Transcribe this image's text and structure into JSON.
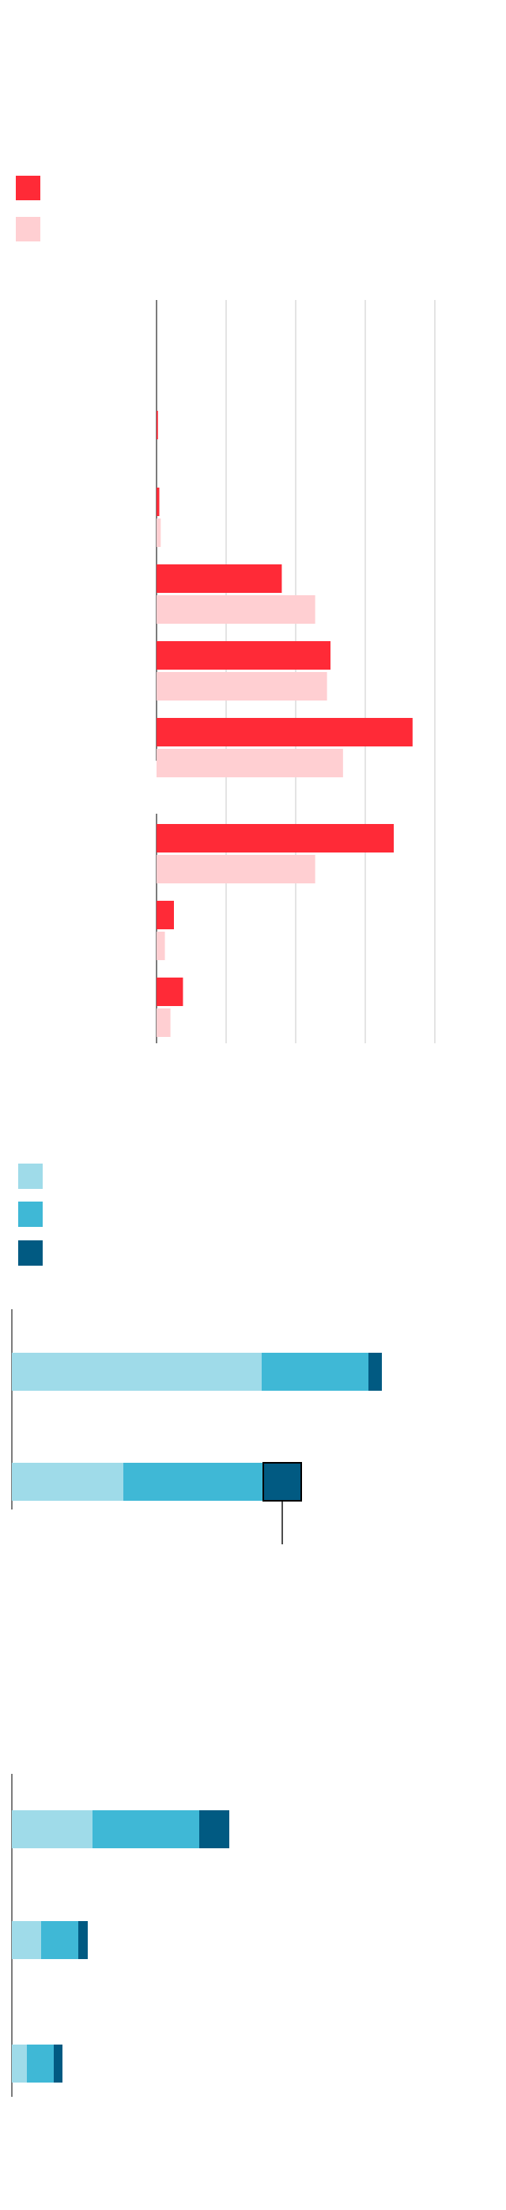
{
  "chart_data": [
    {
      "type": "bar",
      "orientation": "horizontal",
      "title": "",
      "legend": {
        "placement": "top-left",
        "entries": [
          {
            "name": "",
            "color": "#ff2a37"
          },
          {
            "name": "",
            "color": "#ffcfd2"
          }
        ]
      },
      "grid": true,
      "xlim": [
        0,
        4
      ],
      "groups": [
        {
          "categories": [
            "",
            "",
            "",
            "",
            "",
            ""
          ],
          "series": [
            {
              "name": "",
              "color": "#ff2a37",
              "values": [
                0,
                0.02,
                0.04,
                1.8,
                2.5,
                3.68
              ]
            },
            {
              "name": "",
              "color": "#ffcfd2",
              "values": [
                0,
                0,
                0.06,
                2.28,
                2.45,
                2.68
              ]
            }
          ]
        },
        {
          "categories": [
            "",
            "",
            ""
          ],
          "series": [
            {
              "name": "",
              "color": "#ff2a37",
              "values": [
                3.41,
                0.25,
                0.38
              ]
            },
            {
              "name": "",
              "color": "#ffcfd2",
              "values": [
                2.28,
                0.12,
                0.2
              ]
            }
          ]
        }
      ]
    },
    {
      "type": "bar",
      "orientation": "horizontal",
      "stacked": true,
      "title": "",
      "legend": {
        "placement": "top-left",
        "entries": [
          {
            "name": "",
            "color": "#9fdbe9"
          },
          {
            "name": "",
            "color": "#3fb8d6"
          },
          {
            "name": "",
            "color": "#015a82"
          }
        ]
      },
      "categories": [
        "",
        ""
      ],
      "series": [
        {
          "name": "",
          "color": "#9fdbe9",
          "values": [
            316,
            141
          ]
        },
        {
          "name": "",
          "color": "#3fb8d6",
          "values": [
            135,
            177
          ]
        },
        {
          "name": "",
          "color": "#015a82",
          "values": [
            17,
            48
          ]
        }
      ],
      "highlight": {
        "category_index": 1,
        "series_index": 2
      },
      "annotation": ""
    },
    {
      "type": "bar",
      "orientation": "horizontal",
      "stacked": true,
      "title": "",
      "categories": [
        "",
        "",
        ""
      ],
      "series": [
        {
          "name": "",
          "color": "#9fdbe9",
          "values": [
            102,
            37,
            19
          ]
        },
        {
          "name": "",
          "color": "#3fb8d6",
          "values": [
            135,
            47,
            34
          ]
        },
        {
          "name": "",
          "color": "#015a82",
          "values": [
            38,
            12,
            11
          ]
        }
      ]
    }
  ]
}
